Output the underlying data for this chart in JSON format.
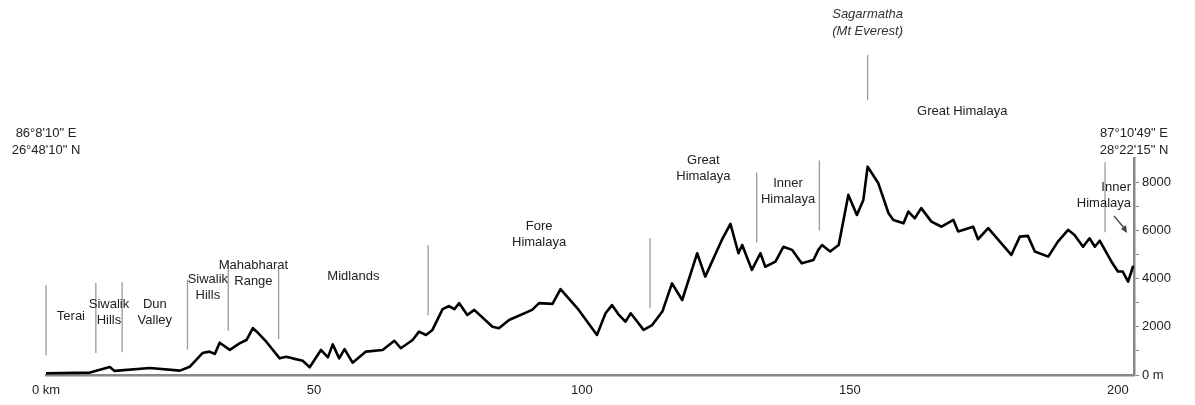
{
  "chart_data": {
    "type": "line",
    "x": [
      0,
      8.2,
      11.9,
      12.8,
      19.4,
      25,
      26.8,
      29.2,
      30.5,
      31.5,
      32.4,
      34.3,
      36.1,
      37.4,
      38.6,
      39.5,
      41.1,
      43.6,
      44.8,
      46,
      47.9,
      49.2,
      51.3,
      52.6,
      53.5,
      54.7,
      55.7,
      57.2,
      59.7,
      62.8,
      65,
      66.2,
      68.4,
      69.6,
      70.9,
      72.1,
      74,
      75.2,
      76.2,
      77.1,
      78.6,
      79.9,
      83.3,
      84.5,
      86.4,
      90.7,
      92,
      94.5,
      96,
      99.4,
      102.8,
      104.4,
      105.6,
      106.9,
      108.1,
      109.1,
      111.5,
      113.1,
      115,
      116.8,
      118.7,
      121.5,
      123,
      126.1,
      127.7,
      129.2,
      129.9,
      131.7,
      133.3,
      134.2,
      136.1,
      137.6,
      139.2,
      141,
      143.2,
      144.1,
      144.8,
      146.3,
      147.9,
      149.7,
      151.3,
      152.5,
      153.3,
      155.3,
      157.2,
      158.1,
      160,
      160.9,
      162.1,
      163.3,
      165.2,
      167.1,
      169.3,
      170.2,
      173,
      173.9,
      175.8,
      180.1,
      181.7,
      183.2,
      184.5,
      187,
      188.8,
      190.7,
      191.9,
      193.5,
      194.7,
      195.7,
      196.6,
      198.8,
      200,
      200.9,
      201.9,
      202.8
    ],
    "series": [
      {
        "color": "#000000",
        "values": [
          70,
          100,
          330,
          170,
          290,
          180,
          340,
          910,
          970,
          870,
          1340,
          1040,
          1310,
          1450,
          1940,
          1760,
          1380,
          690,
          760,
          690,
          590,
          320,
          1040,
          730,
          1270,
          690,
          1070,
          510,
          970,
          1040,
          1420,
          1110,
          1450,
          1800,
          1660,
          1870,
          2730,
          2860,
          2730,
          2980,
          2490,
          2700,
          2000,
          1940,
          2280,
          2700,
          2980,
          2950,
          3560,
          2700,
          1660,
          2560,
          2900,
          2490,
          2210,
          2560,
          1870,
          2070,
          2630,
          3800,
          3110,
          5050,
          4080,
          5600,
          6270,
          5050,
          5390,
          4360,
          5050,
          4490,
          4700,
          5320,
          5190,
          4630,
          4770,
          5190,
          5390,
          5120,
          5390,
          7470,
          6640,
          7260,
          8640,
          7950,
          6710,
          6430,
          6290,
          6780,
          6500,
          6920,
          6360,
          6150,
          6430,
          5950,
          6150,
          5630,
          6090,
          4980,
          5740,
          5770,
          5120,
          4910,
          5530,
          6020,
          5810,
          5320,
          5670,
          5320,
          5570,
          4700,
          4290,
          4290,
          3870,
          4490
        ]
      }
    ],
    "xlim": [
      0,
      203
    ],
    "ylim": [
      0,
      9000
    ],
    "xticks": [
      {
        "value": 0,
        "label": "0 km"
      },
      50,
      100,
      150,
      200
    ],
    "yticks": [
      {
        "value": 0,
        "label": "0 m"
      },
      {
        "value": 1000,
        "label": null
      },
      2000,
      {
        "value": 3000,
        "label": null
      },
      4000,
      {
        "value": 5000,
        "label": null
      },
      6000,
      {
        "value": 7000,
        "label": null
      },
      8000
    ],
    "grid": false,
    "legend": false,
    "marker": "none",
    "line_style": "solid",
    "ref_lines": [
      {
        "axis": "x",
        "value": 0,
        "color": "#999999"
      },
      {
        "axis": "x",
        "value": 9.3,
        "color": "#999999"
      },
      {
        "axis": "x",
        "value": 14.2,
        "color": "#999999"
      },
      {
        "axis": "x",
        "value": 26.4,
        "color": "#999999"
      },
      {
        "axis": "x",
        "value": 34,
        "color": "#999999"
      },
      {
        "axis": "x",
        "value": 43.4,
        "color": "#999999"
      },
      {
        "axis": "x",
        "value": 71.3,
        "color": "#999999"
      },
      {
        "axis": "x",
        "value": 112.7,
        "color": "#999999"
      },
      {
        "axis": "x",
        "value": 132.6,
        "color": "#999999"
      },
      {
        "axis": "x",
        "value": 144.3,
        "color": "#999999"
      },
      {
        "axis": "x",
        "value": 197.6,
        "color": "#999999"
      },
      {
        "axis": "x",
        "value": 153.3,
        "label": "Sagarmatha\n(Mt Everest)",
        "color": "#999999"
      }
    ],
    "annotations": [
      "Terai",
      "Siwalik\nHills",
      "Dun\nValley",
      "Siwalik\nHills",
      "Mahabharat\nRange",
      "Midlands",
      "Fore\nHimalaya",
      "Great\nHimalaya",
      "Inner\nHimalaya",
      "Great Himalaya",
      "Inner\nHimalaya",
      "86°8'10\" E\n26°48'10\" N",
      "87°10'49\" E\n28°22'15\" N"
    ]
  }
}
